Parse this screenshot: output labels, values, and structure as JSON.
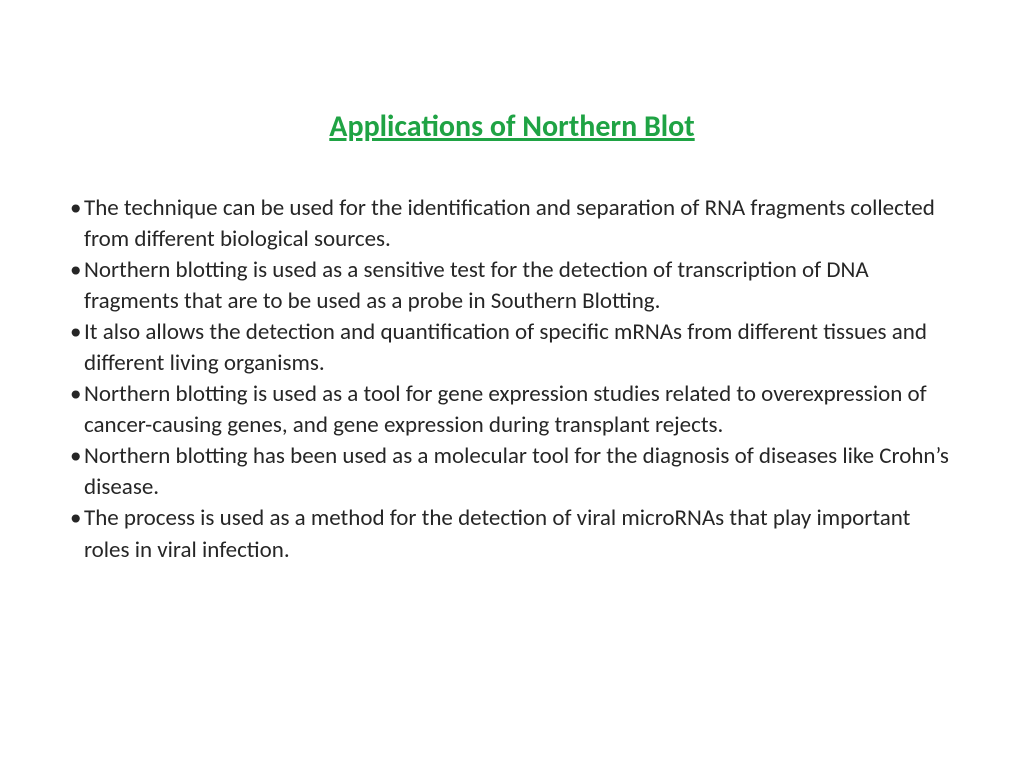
{
  "title": {
    "text": "Applications of Northern Blot",
    "color": "#1fa344",
    "fontsize": 30
  },
  "body": {
    "color": "#262626",
    "fontsize": 23,
    "bullets": [
      "The technique can be used for the identification and separation of RNA fragments collected from different biological sources.",
      "Northern blotting is used as a sensitive test for the detection of transcription of DNA fragments that are to be used as a probe in Southern Blotting.",
      "It also allows the detection and quantification of specific mRNAs from different tissues and different living organisms.",
      "Northern blotting is used as a tool for gene expression studies related to overexpression of cancer-causing genes, and gene expression during transplant rejects.",
      "Northern blotting has been used as a molecular tool for the diagnosis of diseases like Crohn’s disease.",
      "The process is used as a method for the detection of viral microRNAs that play important roles in viral infection."
    ]
  },
  "background_color": "#ffffff"
}
